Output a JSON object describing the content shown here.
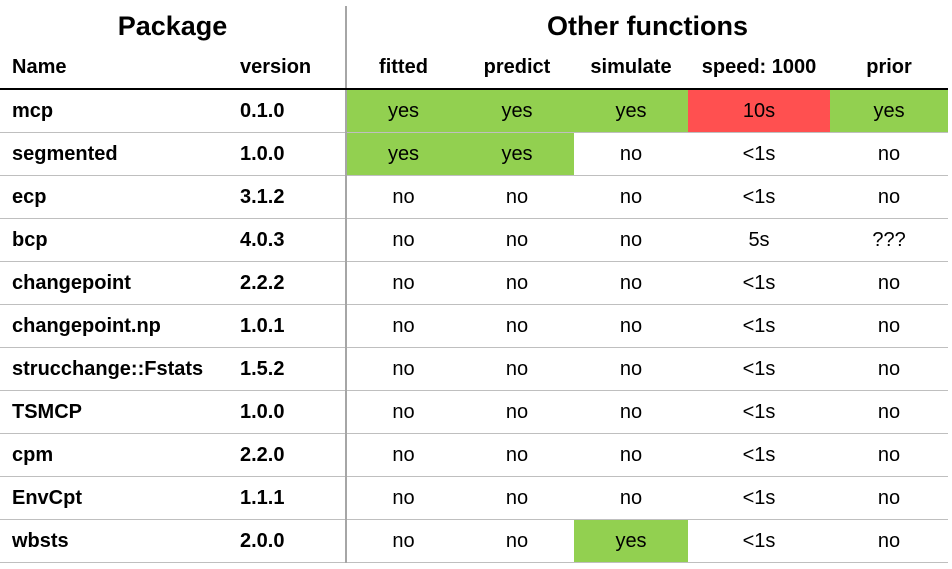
{
  "headers": {
    "group_package": "Package",
    "group_other": "Other functions",
    "columns": [
      "Name",
      "version",
      "fitted",
      "predict",
      "simulate",
      "speed: 1000",
      "prior"
    ]
  },
  "rows": [
    {
      "name": "mcp",
      "version": "0.1.0",
      "fitted": "yes",
      "predict": "yes",
      "simulate": "yes",
      "speed": "10s",
      "prior": "yes"
    },
    {
      "name": "segmented",
      "version": "1.0.0",
      "fitted": "yes",
      "predict": "yes",
      "simulate": "no",
      "speed": "<1s",
      "prior": "no"
    },
    {
      "name": "ecp",
      "version": "3.1.2",
      "fitted": "no",
      "predict": "no",
      "simulate": "no",
      "speed": "<1s",
      "prior": "no"
    },
    {
      "name": "bcp",
      "version": "4.0.3",
      "fitted": "no",
      "predict": "no",
      "simulate": "no",
      "speed": "5s",
      "prior": "???"
    },
    {
      "name": "changepoint",
      "version": "2.2.2",
      "fitted": "no",
      "predict": "no",
      "simulate": "no",
      "speed": "<1s",
      "prior": "no"
    },
    {
      "name": "changepoint.np",
      "version": "1.0.1",
      "fitted": "no",
      "predict": "no",
      "simulate": "no",
      "speed": "<1s",
      "prior": "no"
    },
    {
      "name": "strucchange::Fstats",
      "version": "1.5.2",
      "fitted": "no",
      "predict": "no",
      "simulate": "no",
      "speed": "<1s",
      "prior": "no"
    },
    {
      "name": "TSMCP",
      "version": "1.0.0",
      "fitted": "no",
      "predict": "no",
      "simulate": "no",
      "speed": "<1s",
      "prior": "no"
    },
    {
      "name": "cpm",
      "version": "2.2.0",
      "fitted": "no",
      "predict": "no",
      "simulate": "no",
      "speed": "<1s",
      "prior": "no"
    },
    {
      "name": "EnvCpt",
      "version": "1.1.1",
      "fitted": "no",
      "predict": "no",
      "simulate": "no",
      "speed": "<1s",
      "prior": "no"
    },
    {
      "name": "wbsts",
      "version": "2.0.0",
      "fitted": "no",
      "predict": "no",
      "simulate": "yes",
      "speed": "<1s",
      "prior": "no"
    }
  ],
  "colors": {
    "good": "#92d050",
    "bad": "#ff5050"
  }
}
